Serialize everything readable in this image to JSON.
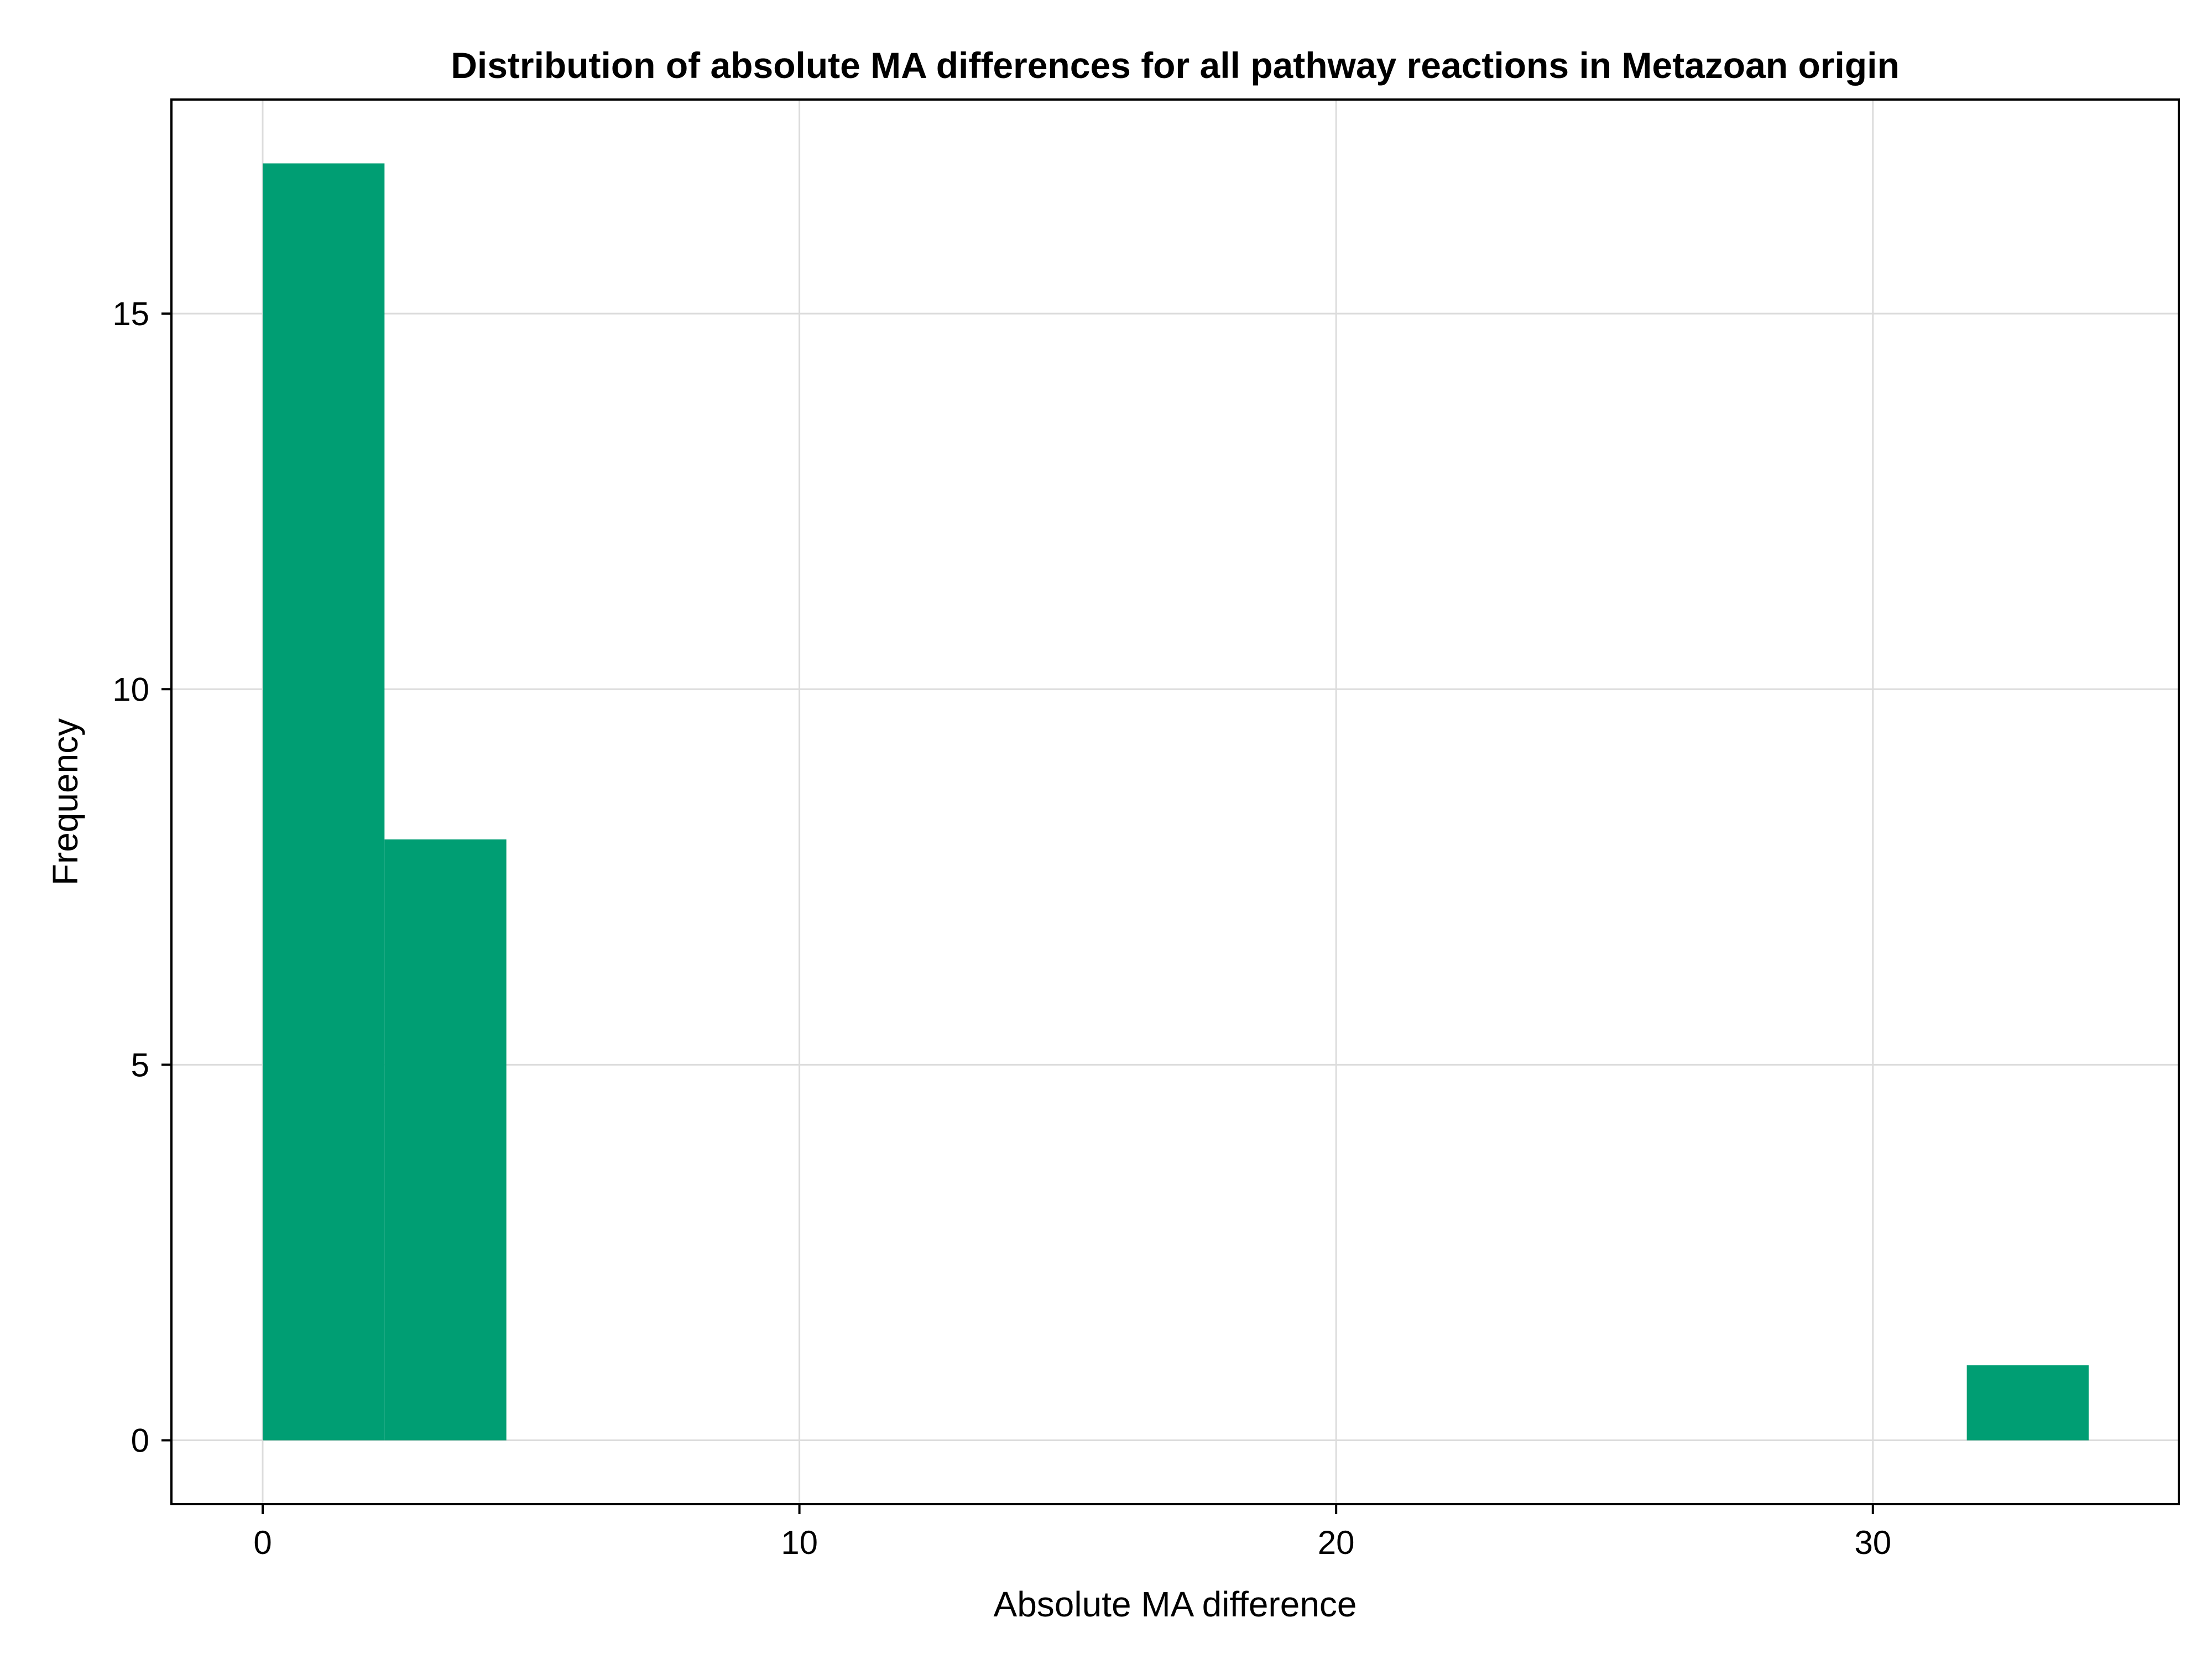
{
  "chart_data": {
    "type": "bar",
    "title": "Distribution of absolute MA differences for all pathway reactions in Metazoan origin",
    "xlabel": "Absolute MA difference",
    "ylabel": "Frequency",
    "bins": [
      {
        "start": 0.0,
        "end": 2.27,
        "count": 17
      },
      {
        "start": 2.27,
        "end": 4.54,
        "count": 8
      },
      {
        "start": 31.75,
        "end": 34.02,
        "count": 1
      }
    ],
    "xticks": [
      0,
      10,
      20,
      30
    ],
    "yticks": [
      0,
      5,
      10,
      15
    ],
    "xlim": [
      -1.7,
      35.7
    ],
    "ylim": [
      -0.85,
      17.85
    ],
    "grid": true,
    "bar_color": "#009e73"
  }
}
